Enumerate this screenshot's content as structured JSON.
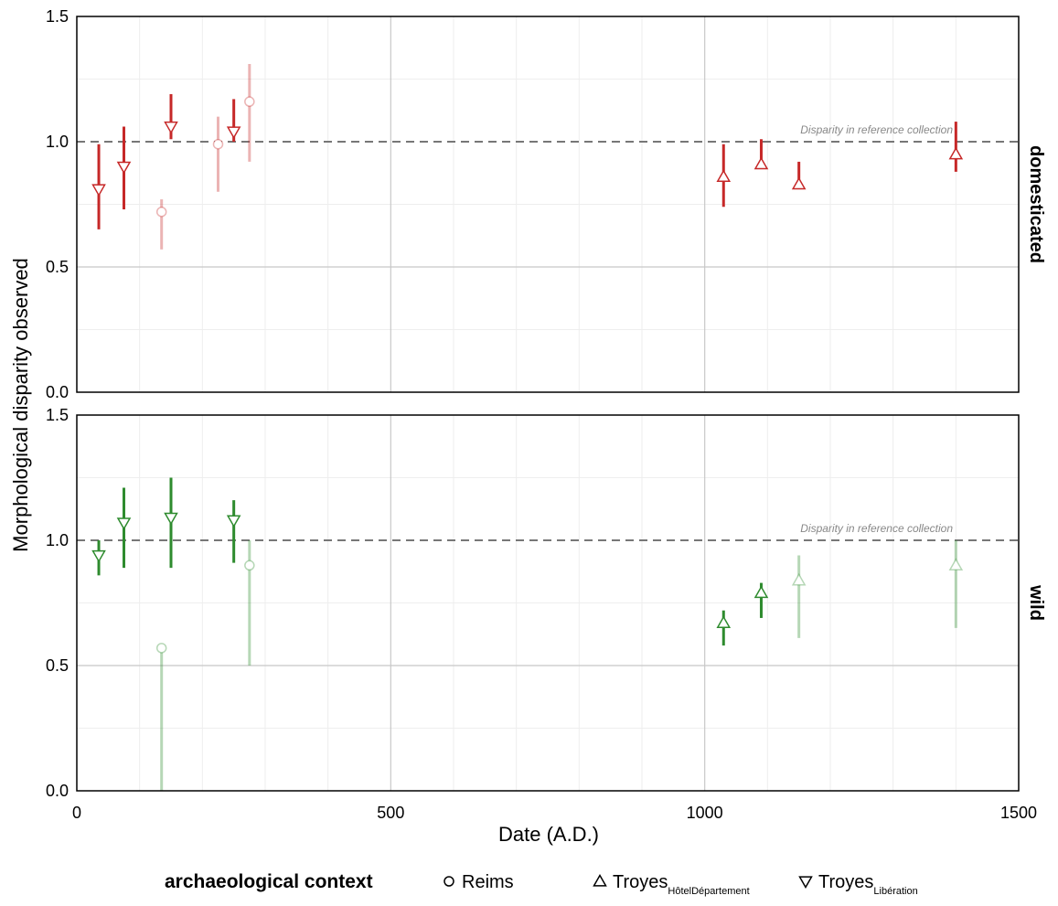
{
  "chart_data": {
    "type": "scatter",
    "xlabel": "Date (A.D.)",
    "ylabel": "Morphological disparity observed",
    "xlim": [
      0,
      1500
    ],
    "ylim": [
      0,
      1.5
    ],
    "x_ticks": [
      "0",
      "500",
      "1000",
      "1500"
    ],
    "y_ticks": [
      "0.0",
      "0.5",
      "1.0",
      "1.5"
    ],
    "grid": true,
    "reference_line": {
      "y": 1.0,
      "label": "Disparity in reference collection"
    },
    "colors": {
      "domesticated": "#c62828",
      "wild": "#2e8b2e",
      "reference": "#777777"
    },
    "legend": {
      "title": "archaeological context",
      "position": "bottom",
      "entries": [
        {
          "key": "Reims",
          "marker": "circle",
          "label": "Reims",
          "sub": ""
        },
        {
          "key": "HD",
          "marker": "triangle-up",
          "label": "Troyes",
          "sub": "HôtelDépartement"
        },
        {
          "key": "Lib",
          "marker": "triangle-down",
          "label": "Troyes",
          "sub": "Libération"
        }
      ]
    },
    "panels": [
      {
        "label": "domesticated",
        "points": [
          {
            "ctx": "Lib",
            "x": 35,
            "y": 0.81,
            "lo": 0.65,
            "hi": 0.99,
            "faded": false
          },
          {
            "ctx": "Lib",
            "x": 75,
            "y": 0.9,
            "lo": 0.73,
            "hi": 1.06,
            "faded": false
          },
          {
            "ctx": "Reims",
            "x": 135,
            "y": 0.72,
            "lo": 0.57,
            "hi": 0.77,
            "faded": true
          },
          {
            "ctx": "Lib",
            "x": 150,
            "y": 1.06,
            "lo": 1.01,
            "hi": 1.19,
            "faded": false
          },
          {
            "ctx": "Reims",
            "x": 225,
            "y": 0.99,
            "lo": 0.8,
            "hi": 1.1,
            "faded": true
          },
          {
            "ctx": "Lib",
            "x": 250,
            "y": 1.04,
            "lo": 1.0,
            "hi": 1.17,
            "faded": false
          },
          {
            "ctx": "Reims",
            "x": 275,
            "y": 1.16,
            "lo": 0.92,
            "hi": 1.31,
            "faded": true
          },
          {
            "ctx": "HD",
            "x": 1030,
            "y": 0.86,
            "lo": 0.74,
            "hi": 0.99,
            "faded": false
          },
          {
            "ctx": "HD",
            "x": 1090,
            "y": 0.91,
            "lo": 0.9,
            "hi": 1.01,
            "faded": false
          },
          {
            "ctx": "HD",
            "x": 1150,
            "y": 0.83,
            "lo": 0.83,
            "hi": 0.92,
            "faded": false
          },
          {
            "ctx": "HD",
            "x": 1400,
            "y": 0.95,
            "lo": 0.88,
            "hi": 1.08,
            "faded": false
          }
        ]
      },
      {
        "label": "wild",
        "points": [
          {
            "ctx": "Lib",
            "x": 35,
            "y": 0.94,
            "lo": 0.86,
            "hi": 1.0,
            "faded": false
          },
          {
            "ctx": "Lib",
            "x": 75,
            "y": 1.07,
            "lo": 0.89,
            "hi": 1.21,
            "faded": false
          },
          {
            "ctx": "Reims",
            "x": 135,
            "y": 0.57,
            "lo": 0.0,
            "hi": 0.57,
            "faded": true
          },
          {
            "ctx": "Lib",
            "x": 150,
            "y": 1.09,
            "lo": 0.89,
            "hi": 1.25,
            "faded": false
          },
          {
            "ctx": "Lib",
            "x": 250,
            "y": 1.08,
            "lo": 0.91,
            "hi": 1.16,
            "faded": false
          },
          {
            "ctx": "Reims",
            "x": 275,
            "y": 0.9,
            "lo": 0.5,
            "hi": 1.0,
            "faded": true
          },
          {
            "ctx": "HD",
            "x": 1030,
            "y": 0.67,
            "lo": 0.58,
            "hi": 0.72,
            "faded": false
          },
          {
            "ctx": "HD",
            "x": 1090,
            "y": 0.79,
            "lo": 0.69,
            "hi": 0.83,
            "faded": false
          },
          {
            "ctx": "HD",
            "x": 1150,
            "y": 0.84,
            "lo": 0.61,
            "hi": 0.94,
            "faded": true
          },
          {
            "ctx": "HD",
            "x": 1400,
            "y": 0.9,
            "lo": 0.65,
            "hi": 1.0,
            "faded": true
          }
        ]
      }
    ]
  }
}
